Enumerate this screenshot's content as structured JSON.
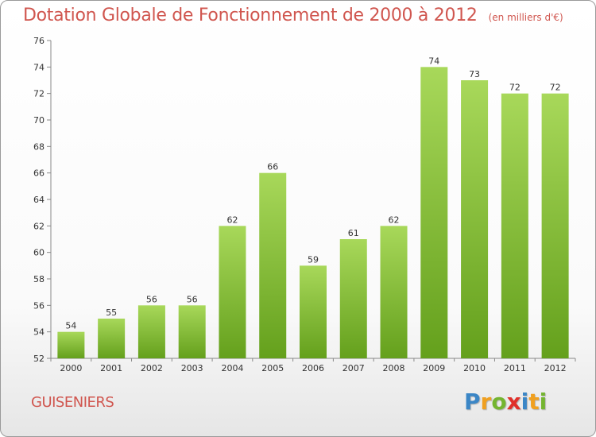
{
  "header": {
    "title": "Dotation Globale de Fonctionnement de 2000 à 2012",
    "unit": "(en milliers d'€)"
  },
  "footer": {
    "commune": "GUISENIERS",
    "logo": {
      "letters": [
        "P",
        "r",
        "o",
        "x",
        "i",
        "t",
        "i"
      ],
      "colors": [
        "#3b86c6",
        "#f0a020",
        "#74b530",
        "#e0302a",
        "#3b86c6",
        "#f0a020",
        "#74b530"
      ]
    }
  },
  "chart_data": {
    "type": "bar",
    "title": "Dotation Globale de Fonctionnement de 2000 à 2012",
    "subtitle": "(en milliers d'€)",
    "xlabel": "",
    "ylabel": "",
    "categories": [
      "2000",
      "2001",
      "2002",
      "2003",
      "2004",
      "2005",
      "2006",
      "2007",
      "2008",
      "2009",
      "2010",
      "2011",
      "2012"
    ],
    "values": [
      54,
      55,
      56,
      56,
      62,
      66,
      59,
      61,
      62,
      74,
      73,
      72,
      72
    ],
    "ylim": [
      52,
      76
    ],
    "yticks": [
      52,
      54,
      56,
      58,
      60,
      62,
      64,
      66,
      68,
      70,
      72,
      74,
      76
    ],
    "grid": false,
    "bar_color_top": "#a8d85a",
    "bar_color_bottom": "#64a01c",
    "data_labels": true
  }
}
